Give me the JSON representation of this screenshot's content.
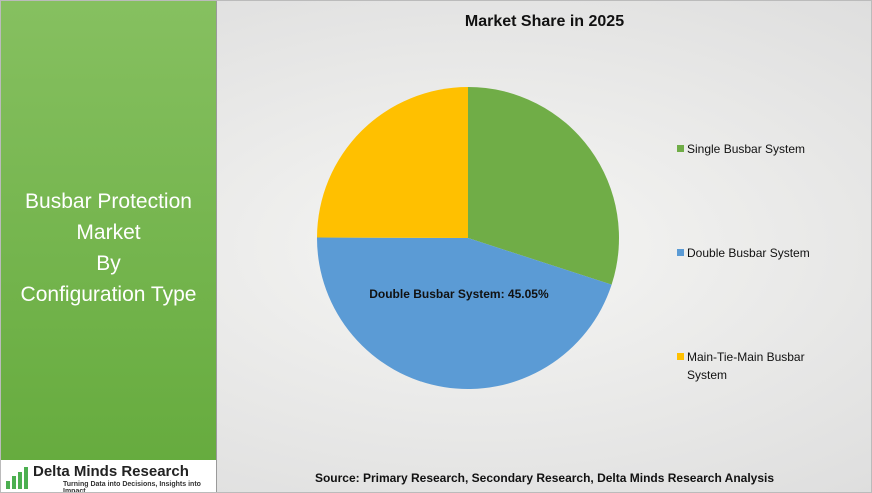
{
  "sidebar": {
    "title_lines": [
      "Busbar Protection",
      "Market",
      "By",
      "Configuration Type"
    ],
    "logo": {
      "name": "Delta Minds Research",
      "tagline": "Turning Data into Decisions, Insights into Impact"
    }
  },
  "chart_data": {
    "type": "pie",
    "title": "Market Share in 2025",
    "categories": [
      "Single Busbar System",
      "Double Busbar System",
      "Main-Tie-Main Busbar System"
    ],
    "values": [
      30,
      45.05,
      24.95
    ],
    "value_labels": [
      null,
      "Double Busbar System: 45.05%",
      null
    ],
    "colors": [
      "#70ad47",
      "#5b9bd5",
      "#ffc000"
    ],
    "legend": "right",
    "source": "Source: Primary Research, Secondary Research, Delta Minds Research Analysis"
  }
}
